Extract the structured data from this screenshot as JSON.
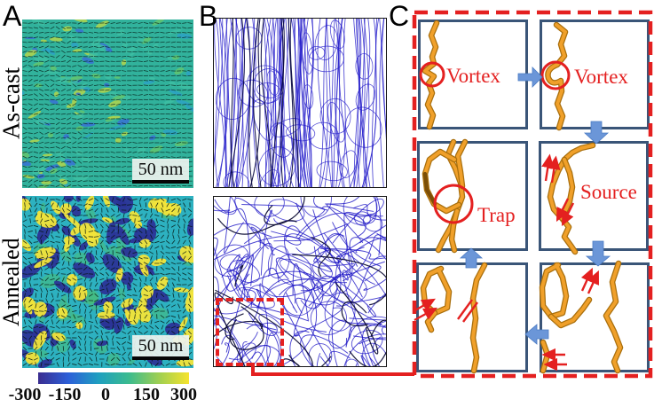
{
  "figure_labels": {
    "A": "A",
    "B": "B",
    "C": "C"
  },
  "panelA": {
    "rows": [
      {
        "name": "As-cast",
        "scalebar": "50 nm"
      },
      {
        "name": "Annealed",
        "scalebar": "50 nm"
      }
    ],
    "colorbar_ticks": [
      "-300",
      "-150",
      "0",
      "150",
      "300"
    ]
  },
  "panelC": {
    "annotations": {
      "vortex1": "Vortex",
      "vortex2": "Vortex",
      "trap": "Trap",
      "source": "Source"
    }
  },
  "colors": {
    "accent_red": "#e42020",
    "arrow_blue": "#6b96d8",
    "box_navy": "#3a5578",
    "chain_orange": "#f0a02a",
    "chain_orange_dark": "#a96f0d",
    "fibril_blue": "#2119c9",
    "fibril_dark": "#05053f",
    "ascast_base": "#31b29c",
    "annealed_base": "#2db1c0",
    "annealed_navy": "#2b3497",
    "annealed_yellow": "#f2e43a",
    "colorbar_gradient": [
      "#3b2d90",
      "#2c5fd8",
      "#1f9fc0",
      "#3bbb8f",
      "#9ecf52",
      "#f6e32e"
    ]
  }
}
